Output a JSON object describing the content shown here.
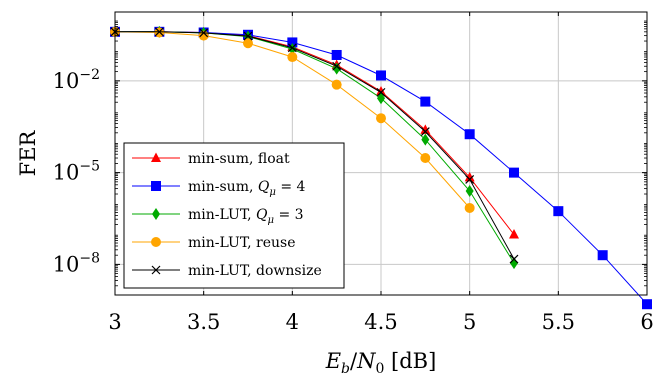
{
  "chart_data": {
    "type": "line",
    "xlabel": "E_b/N_0 [dB]",
    "ylabel": "FER",
    "xlim": [
      3,
      6
    ],
    "ylim_log10": [
      -9,
      0.25
    ],
    "y_scale": "log",
    "grid": true,
    "legend_position": "bottom-left",
    "x_ticks": [
      3,
      3.5,
      4,
      4.5,
      5,
      5.5,
      6
    ],
    "x_tick_labels": [
      "3",
      "3.5",
      "4",
      "4.5",
      "5",
      "5.5",
      "6"
    ],
    "y_ticks_log10": [
      -2,
      -5,
      -8
    ],
    "y_tick_labels": [
      {
        "base": "10",
        "exp": "−2"
      },
      {
        "base": "10",
        "exp": "−5"
      },
      {
        "base": "10",
        "exp": "−8"
      }
    ],
    "series": [
      {
        "name": "min-sum, float",
        "color": "#ff0000",
        "marker": "triangle",
        "x": [
          3,
          3.25,
          3.5,
          3.75,
          4,
          4.25,
          4.5,
          4.75,
          5,
          5.25
        ],
        "y": [
          0.4,
          0.4,
          0.38,
          0.3,
          0.13,
          0.033,
          0.0045,
          0.00025,
          7e-06,
          9.5e-08
        ]
      },
      {
        "name": "min-sum, Q_μ = 4",
        "color": "#0000ff",
        "marker": "square",
        "x": [
          3,
          3.25,
          3.5,
          3.75,
          4,
          4.25,
          4.5,
          4.75,
          5,
          5.25,
          5.5,
          5.75,
          6
        ],
        "y": [
          0.4,
          0.4,
          0.38,
          0.32,
          0.18,
          0.07,
          0.015,
          0.0021,
          0.00018,
          1e-05,
          5.5e-07,
          2e-08,
          5e-10
        ]
      },
      {
        "name": "min-LUT, Q_μ = 3",
        "color": "#00aa00",
        "marker": "diamond",
        "x": [
          3,
          3.25,
          3.5,
          3.75,
          4,
          4.25,
          4.5,
          4.75,
          5,
          5.25
        ],
        "y": [
          0.4,
          0.4,
          0.37,
          0.28,
          0.11,
          0.025,
          0.0027,
          0.00012,
          2.5e-06,
          1.1e-08
        ]
      },
      {
        "name": "min-LUT, reuse",
        "color": "#ffa500",
        "marker": "circle",
        "x": [
          3,
          3.25,
          3.5,
          3.75,
          4,
          4.25,
          4.5,
          4.75,
          5
        ],
        "y": [
          0.4,
          0.38,
          0.3,
          0.17,
          0.06,
          0.0075,
          0.0006,
          3e-05,
          7e-07
        ]
      },
      {
        "name": "min-LUT, downsize",
        "color": "#000000",
        "marker": "cross",
        "x": [
          3,
          3.25,
          3.5,
          3.75,
          4,
          4.25,
          4.5,
          4.75,
          5,
          5.25
        ],
        "y": [
          0.4,
          0.4,
          0.37,
          0.29,
          0.12,
          0.03,
          0.0042,
          0.00022,
          6e-06,
          1.5e-08
        ]
      }
    ]
  }
}
